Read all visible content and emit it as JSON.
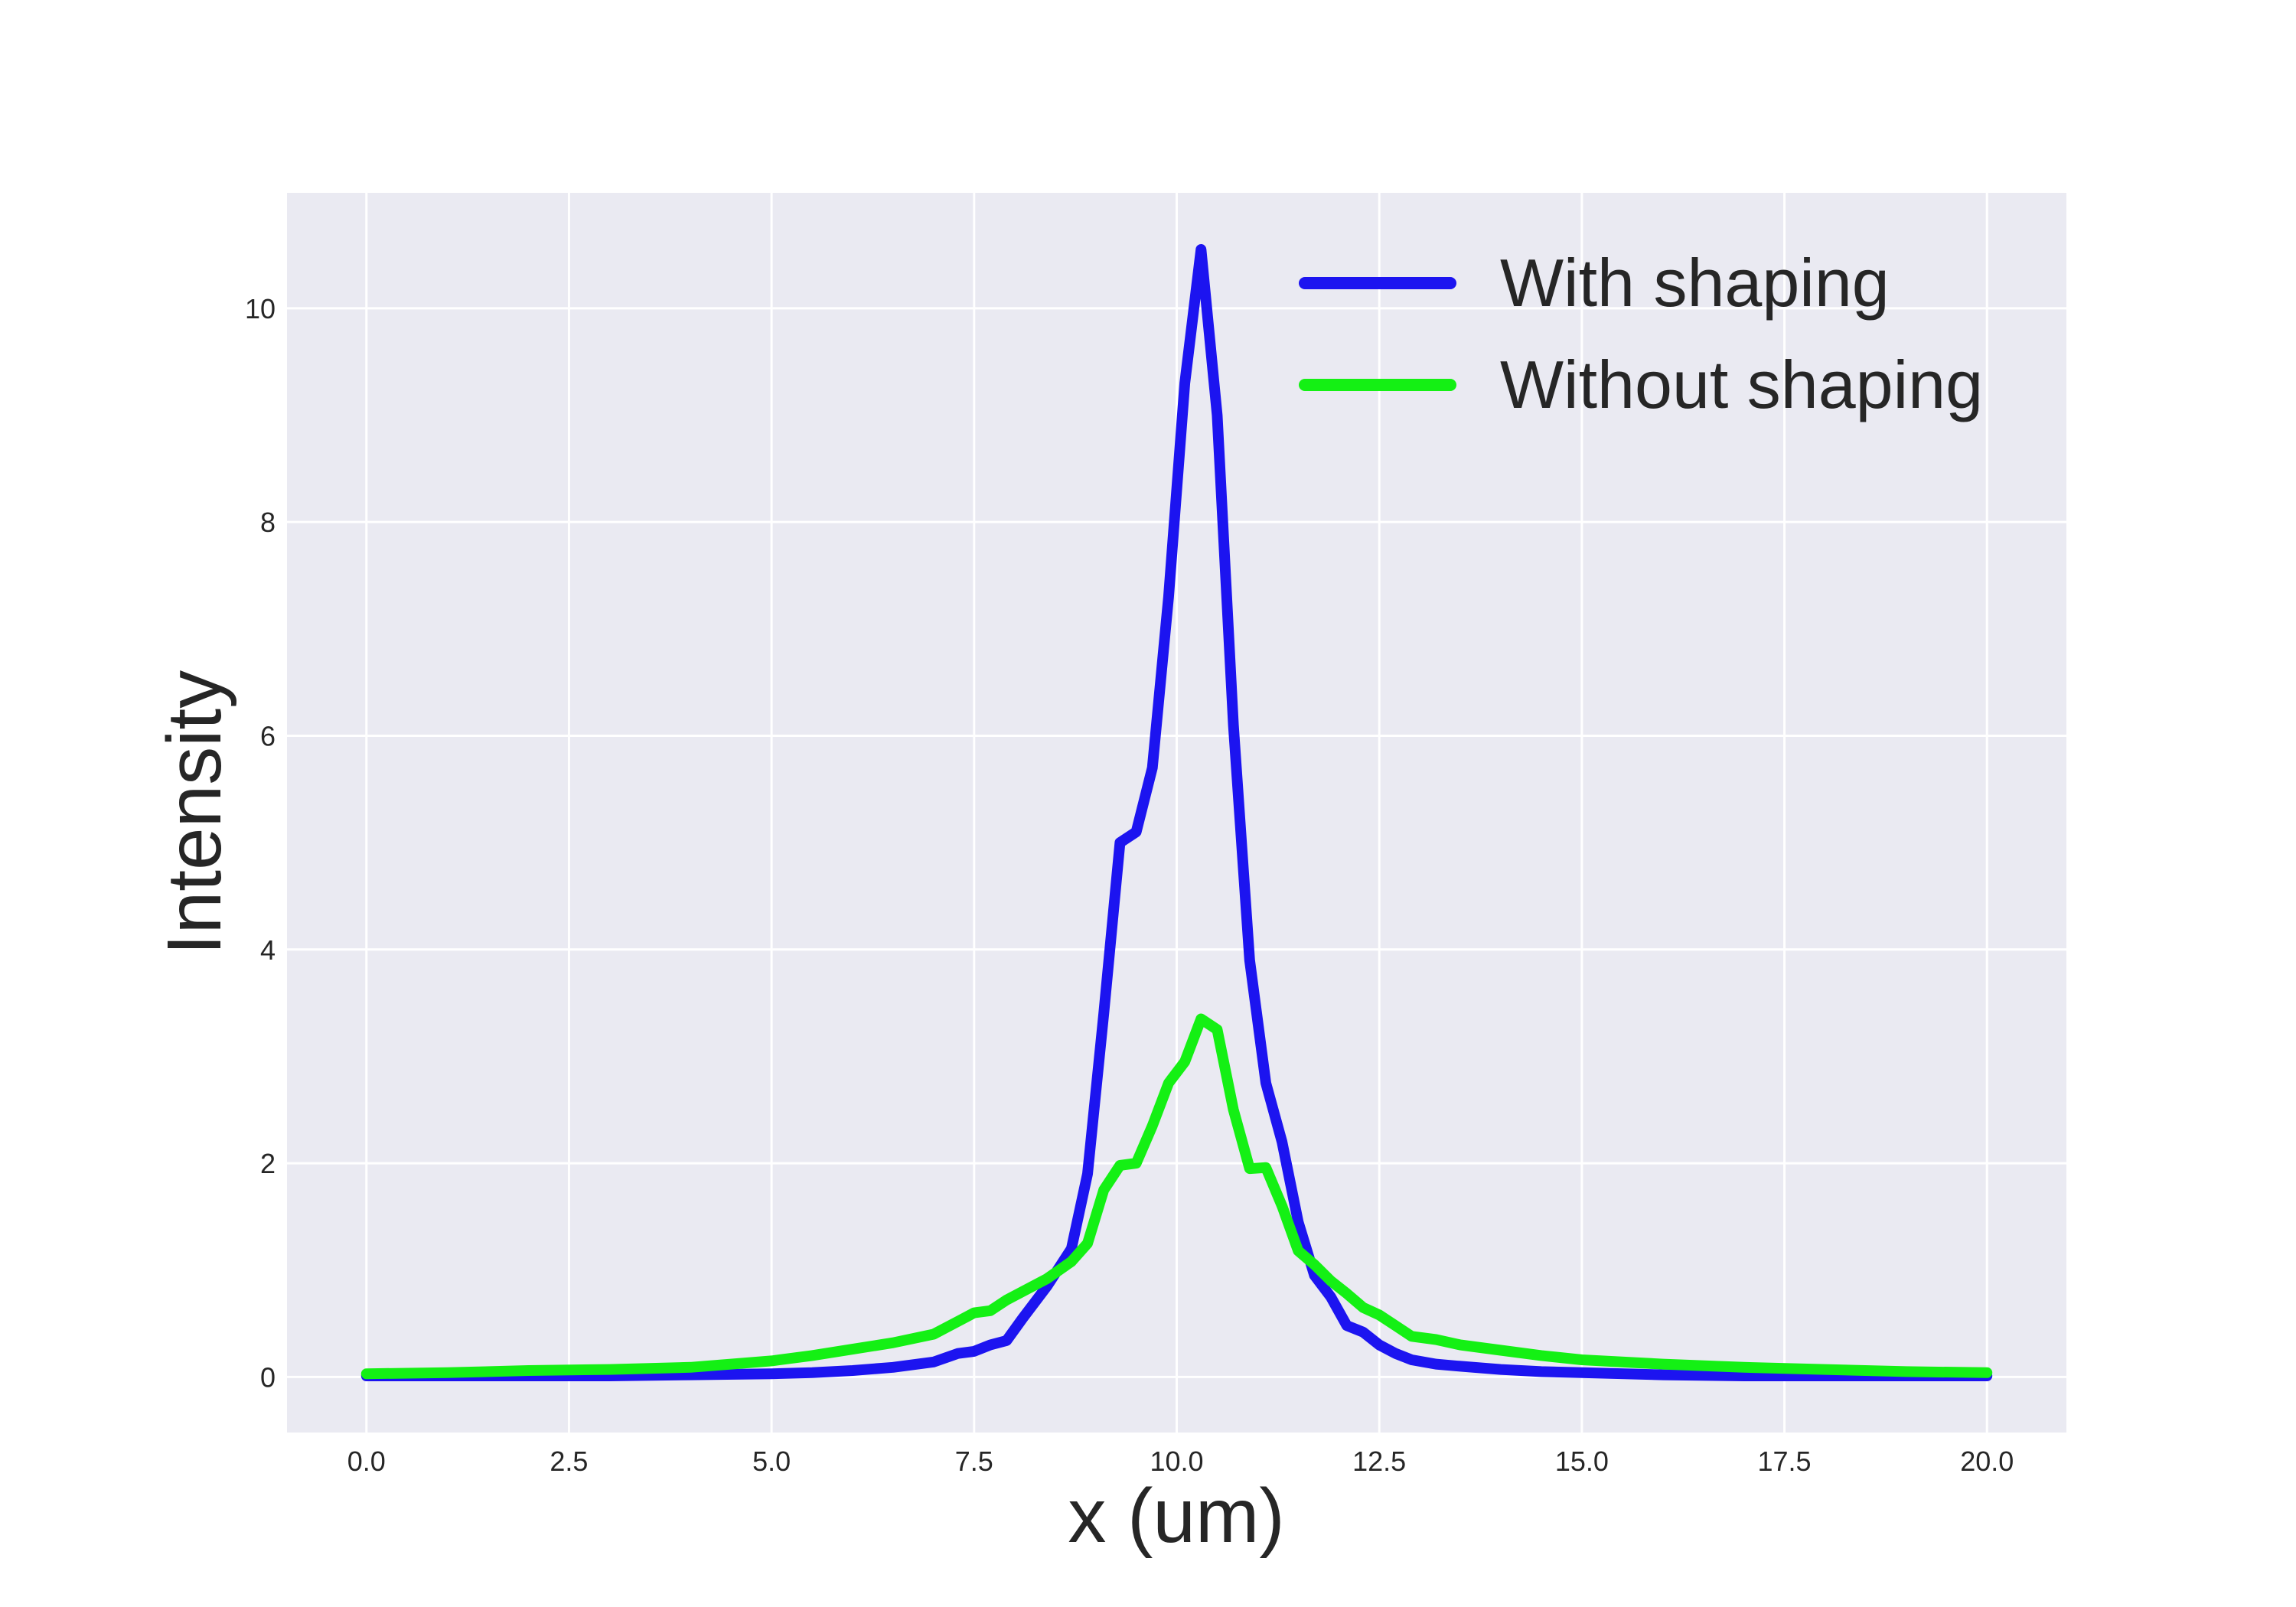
{
  "chart_data": {
    "type": "line",
    "title": "",
    "xlabel": "x (um)",
    "ylabel": "Intensity",
    "xlim": [
      -0.98,
      20.98
    ],
    "ylim": [
      -0.52,
      11.08
    ],
    "xticks": [
      0.0,
      2.5,
      5.0,
      7.5,
      10.0,
      12.5,
      15.0,
      17.5,
      20.0
    ],
    "xtick_labels": [
      "0.0",
      "2.5",
      "5.0",
      "7.5",
      "10.0",
      "12.5",
      "15.0",
      "17.5",
      "20.0"
    ],
    "yticks": [
      0,
      2,
      4,
      6,
      8,
      10
    ],
    "ytick_labels": [
      "0",
      "2",
      "4",
      "6",
      "8",
      "10"
    ],
    "grid": true,
    "background": "#eaeaf2",
    "legend": "top-right",
    "series": [
      {
        "name": "With shaping",
        "color": "#1c14f0",
        "x": [
          0.0,
          1.0,
          2.0,
          3.0,
          4.0,
          5.0,
          5.5,
          6.0,
          6.5,
          7.0,
          7.3,
          7.5,
          7.7,
          7.9,
          8.1,
          8.4,
          8.7,
          8.9,
          9.1,
          9.3,
          9.5,
          9.7,
          9.9,
          10.1,
          10.3,
          10.5,
          10.7,
          10.9,
          11.1,
          11.3,
          11.5,
          11.7,
          11.9,
          12.1,
          12.3,
          12.5,
          12.7,
          12.9,
          13.2,
          13.5,
          14.0,
          14.5,
          15.0,
          16.0,
          17.0,
          18.0,
          19.0,
          20.0
        ],
        "y": [
          0.01,
          0.01,
          0.01,
          0.01,
          0.02,
          0.03,
          0.04,
          0.06,
          0.09,
          0.14,
          0.22,
          0.24,
          0.3,
          0.34,
          0.55,
          0.85,
          1.2,
          1.9,
          3.4,
          5.0,
          5.1,
          5.7,
          7.3,
          9.3,
          10.55,
          9.0,
          6.1,
          3.9,
          2.75,
          2.2,
          1.45,
          0.95,
          0.75,
          0.48,
          0.42,
          0.3,
          0.22,
          0.16,
          0.12,
          0.1,
          0.07,
          0.05,
          0.04,
          0.02,
          0.01,
          0.01,
          0.01,
          0.01
        ]
      },
      {
        "name": "Without shaping",
        "color": "#14f014",
        "x": [
          0.0,
          1.0,
          2.0,
          3.0,
          4.0,
          4.5,
          5.0,
          5.5,
          6.0,
          6.5,
          7.0,
          7.3,
          7.5,
          7.7,
          7.9,
          8.1,
          8.4,
          8.7,
          8.9,
          9.1,
          9.3,
          9.5,
          9.7,
          9.9,
          10.1,
          10.3,
          10.5,
          10.7,
          10.9,
          11.1,
          11.3,
          11.5,
          11.7,
          11.9,
          12.1,
          12.3,
          12.5,
          12.7,
          12.9,
          13.2,
          13.5,
          14.0,
          14.5,
          15.0,
          16.0,
          17.0,
          18.0,
          19.0,
          20.0
        ],
        "y": [
          0.03,
          0.04,
          0.06,
          0.07,
          0.09,
          0.12,
          0.15,
          0.2,
          0.26,
          0.32,
          0.4,
          0.52,
          0.6,
          0.62,
          0.72,
          0.8,
          0.92,
          1.08,
          1.25,
          1.75,
          1.98,
          2.0,
          2.35,
          2.75,
          2.95,
          3.35,
          3.25,
          2.5,
          1.95,
          1.96,
          1.6,
          1.18,
          1.05,
          0.9,
          0.78,
          0.65,
          0.58,
          0.48,
          0.38,
          0.35,
          0.3,
          0.25,
          0.2,
          0.16,
          0.12,
          0.09,
          0.07,
          0.05,
          0.04
        ]
      }
    ]
  }
}
